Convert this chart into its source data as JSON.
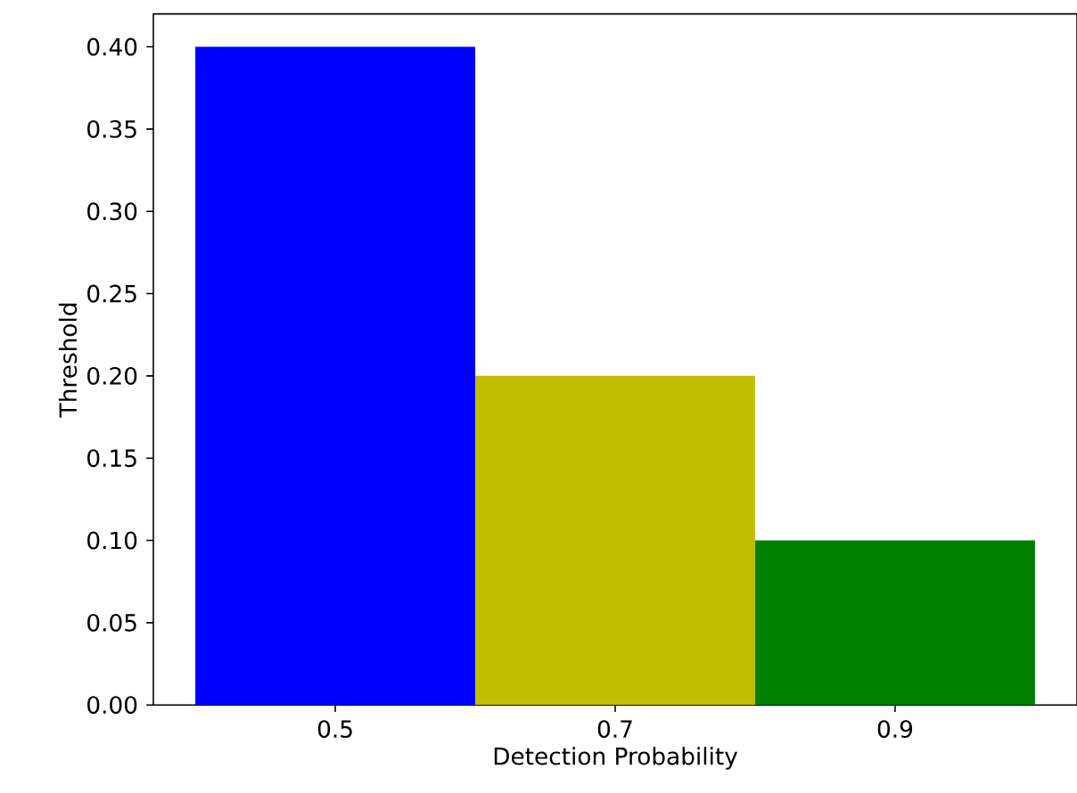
{
  "chart_data": {
    "type": "bar",
    "xlabel": "Detection Probability",
    "ylabel": "Threshold",
    "categories": [
      "0.5",
      "0.7",
      "0.9"
    ],
    "values": [
      0.4,
      0.2,
      0.1
    ],
    "colors": [
      "#0000ff",
      "#bfbf00",
      "#008000"
    ],
    "ylim": [
      0,
      0.42
    ],
    "yticks": [
      {
        "value": 0,
        "label": "0.00"
      },
      {
        "value": 0.05,
        "label": "0.05"
      },
      {
        "value": 0.1,
        "label": "0.10"
      },
      {
        "value": 0.15,
        "label": "0.15"
      },
      {
        "value": 0.2,
        "label": "0.20"
      },
      {
        "value": 0.25,
        "label": "0.25"
      },
      {
        "value": 0.3,
        "label": "0.30"
      },
      {
        "value": 0.35,
        "label": "0.35"
      },
      {
        "value": 0.4,
        "label": "0.40"
      }
    ]
  }
}
